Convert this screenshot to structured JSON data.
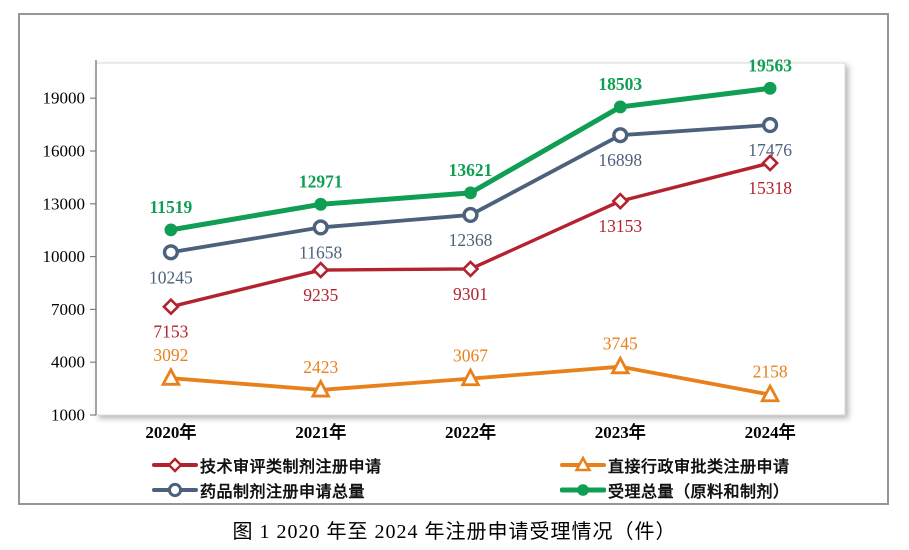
{
  "caption": "图 1  2020 年至 2024 年注册申请受理情况（件）",
  "chart_data": {
    "type": "line",
    "title": "",
    "xlabel": "",
    "ylabel": "",
    "categories": [
      "2020年",
      "2021年",
      "2022年",
      "2023年",
      "2024年"
    ],
    "series": [
      {
        "name": "技术审评类制剂注册申请",
        "color": "#B2232F",
        "marker": "diamond",
        "label_position": "below",
        "labels_bold": false,
        "values": [
          7153,
          9235,
          9301,
          13153,
          15318
        ]
      },
      {
        "name": "直接行政审批类注册申请",
        "color": "#E8811C",
        "marker": "triangle",
        "label_position": "above",
        "labels_bold": false,
        "values": [
          3092,
          2423,
          3067,
          3745,
          2158
        ]
      },
      {
        "name": "药品制剂注册申请总量",
        "color": "#4C617C",
        "marker": "circle",
        "label_position": "below",
        "labels_bold": false,
        "values": [
          10245,
          11658,
          12368,
          16898,
          17476
        ]
      },
      {
        "name": "受理总量（原料和制剂）",
        "color": "#0F9E53",
        "marker": "dot",
        "label_position": "above",
        "labels_bold": true,
        "values": [
          11519,
          12971,
          13621,
          18503,
          19563
        ]
      }
    ],
    "ylim": [
      1000,
      21000
    ],
    "yticks": [
      1000,
      4000,
      7000,
      10000,
      13000,
      16000,
      19000
    ],
    "grid": false,
    "legend_position": "bottom",
    "axis_color": "#7F7F7F",
    "plot_border_color": "#D9D9D9",
    "tick_label_color": "#000000"
  }
}
